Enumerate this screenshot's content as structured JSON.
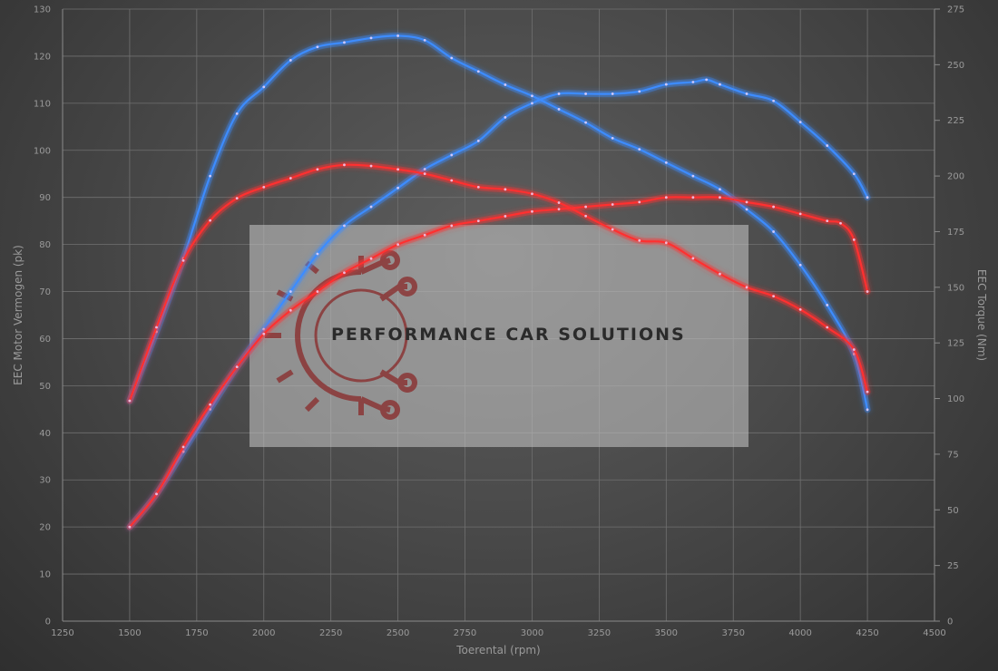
{
  "chart_data": {
    "type": "line",
    "xlabel": "Toerental (rpm)",
    "ylabel_left": "EEC Motor Vermogen (pk)",
    "ylabel_right": "EEC Torque (Nm)",
    "xlim": [
      1250,
      4500
    ],
    "ylim_left": [
      0,
      130
    ],
    "ylim_right": [
      0,
      275
    ],
    "x_ticks": [
      "1250",
      "1500",
      "1750",
      "2000",
      "2250",
      "2500",
      "2750",
      "3000",
      "3250",
      "3500",
      "3750",
      "4000",
      "4250",
      "4500"
    ],
    "y_left_ticks": [
      "0",
      "10",
      "20",
      "30",
      "40",
      "50",
      "60",
      "70",
      "80",
      "90",
      "100",
      "110",
      "120",
      "130"
    ],
    "y_right_ticks": [
      "0",
      "25",
      "50",
      "75",
      "100",
      "125",
      "150",
      "175",
      "200",
      "225",
      "250",
      "275"
    ],
    "grid": true,
    "series": [
      {
        "axis": "left",
        "color": "#3d8cff",
        "points": [
          [
            1500,
            20
          ],
          [
            1600,
            27
          ],
          [
            1700,
            36
          ],
          [
            1800,
            45
          ],
          [
            1900,
            54
          ],
          [
            2000,
            62
          ],
          [
            2100,
            70
          ],
          [
            2200,
            78
          ],
          [
            2300,
            84
          ],
          [
            2400,
            88
          ],
          [
            2500,
            92
          ],
          [
            2600,
            96
          ],
          [
            2700,
            99
          ],
          [
            2800,
            102
          ],
          [
            2900,
            107
          ],
          [
            3000,
            110
          ],
          [
            3100,
            112
          ],
          [
            3200,
            112
          ],
          [
            3300,
            112
          ],
          [
            3400,
            112.5
          ],
          [
            3500,
            114
          ],
          [
            3600,
            114.5
          ],
          [
            3650,
            115
          ],
          [
            3700,
            114
          ],
          [
            3800,
            112
          ],
          [
            3900,
            110.5
          ],
          [
            4000,
            106
          ],
          [
            4100,
            101
          ],
          [
            4200,
            95
          ],
          [
            4250,
            90
          ]
        ]
      },
      {
        "axis": "right",
        "color": "#3d8cff",
        "points": [
          [
            1500,
            99
          ],
          [
            1600,
            130
          ],
          [
            1700,
            163
          ],
          [
            1800,
            200
          ],
          [
            1900,
            228
          ],
          [
            2000,
            240
          ],
          [
            2100,
            252
          ],
          [
            2200,
            258
          ],
          [
            2300,
            260
          ],
          [
            2400,
            262
          ],
          [
            2500,
            263
          ],
          [
            2600,
            261
          ],
          [
            2700,
            253
          ],
          [
            2800,
            247
          ],
          [
            2900,
            241
          ],
          [
            3000,
            236
          ],
          [
            3100,
            230
          ],
          [
            3200,
            224
          ],
          [
            3300,
            217
          ],
          [
            3400,
            212
          ],
          [
            3500,
            206
          ],
          [
            3600,
            200
          ],
          [
            3700,
            194
          ],
          [
            3800,
            185
          ],
          [
            3900,
            175
          ],
          [
            4000,
            160
          ],
          [
            4100,
            142
          ],
          [
            4200,
            120
          ],
          [
            4250,
            95
          ]
        ]
      },
      {
        "axis": "left",
        "color": "#ff3030",
        "points": [
          [
            1500,
            20
          ],
          [
            1600,
            27
          ],
          [
            1700,
            37
          ],
          [
            1800,
            46
          ],
          [
            1900,
            54
          ],
          [
            2000,
            61
          ],
          [
            2100,
            66
          ],
          [
            2200,
            70
          ],
          [
            2300,
            74
          ],
          [
            2400,
            77
          ],
          [
            2500,
            80
          ],
          [
            2600,
            82
          ],
          [
            2700,
            84
          ],
          [
            2800,
            85
          ],
          [
            2900,
            86
          ],
          [
            3000,
            87
          ],
          [
            3100,
            87.5
          ],
          [
            3200,
            88
          ],
          [
            3300,
            88.5
          ],
          [
            3400,
            89
          ],
          [
            3500,
            90
          ],
          [
            3600,
            90
          ],
          [
            3700,
            90
          ],
          [
            3800,
            89
          ],
          [
            3900,
            88
          ],
          [
            4000,
            86.5
          ],
          [
            4100,
            85
          ],
          [
            4150,
            84.5
          ],
          [
            4200,
            81
          ],
          [
            4250,
            70
          ]
        ]
      },
      {
        "axis": "right",
        "color": "#ff3030",
        "points": [
          [
            1500,
            99
          ],
          [
            1600,
            132
          ],
          [
            1700,
            162
          ],
          [
            1800,
            180
          ],
          [
            1900,
            190
          ],
          [
            2000,
            195
          ],
          [
            2100,
            199
          ],
          [
            2200,
            203
          ],
          [
            2300,
            205
          ],
          [
            2400,
            204.5
          ],
          [
            2500,
            203
          ],
          [
            2600,
            201
          ],
          [
            2700,
            198
          ],
          [
            2800,
            195
          ],
          [
            2900,
            194
          ],
          [
            3000,
            192
          ],
          [
            3100,
            188
          ],
          [
            3200,
            182
          ],
          [
            3300,
            176
          ],
          [
            3400,
            171
          ],
          [
            3500,
            170
          ],
          [
            3600,
            163
          ],
          [
            3700,
            156
          ],
          [
            3800,
            150
          ],
          [
            3900,
            146
          ],
          [
            4000,
            140
          ],
          [
            4100,
            132
          ],
          [
            4200,
            122
          ],
          [
            4250,
            103
          ]
        ]
      }
    ]
  },
  "watermark": {
    "text": "PERFORMANCE CAR SOLUTIONS"
  }
}
